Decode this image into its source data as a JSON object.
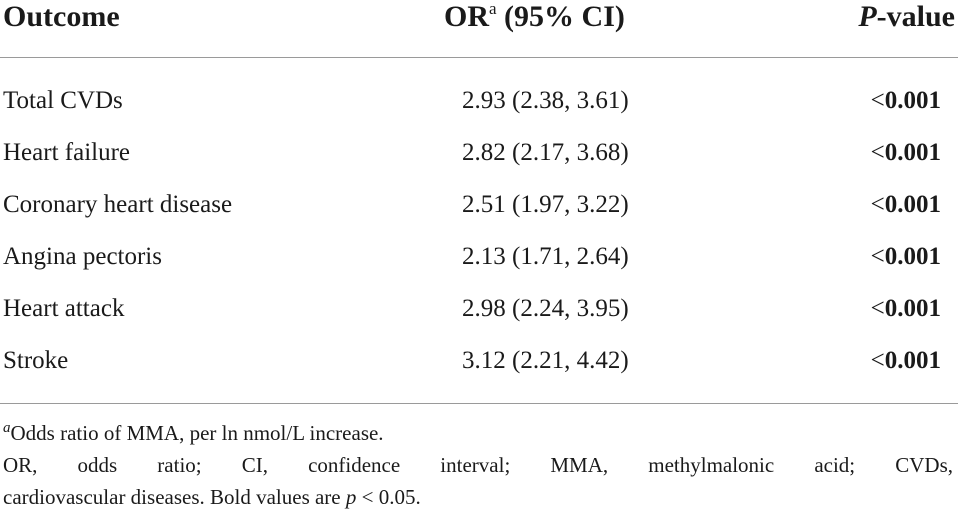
{
  "table": {
    "headers": {
      "outcome": "Outcome",
      "or_main": "OR",
      "or_sup": "a",
      "or_rest": " (95% CI)",
      "p_italic": "P",
      "p_rest": "-value"
    },
    "rows": [
      {
        "outcome": "Total CVDs",
        "or": "2.93 (2.38, 3.61)",
        "p_prefix": "<",
        "p_value": "0.001"
      },
      {
        "outcome": "Heart failure",
        "or": "2.82 (2.17, 3.68)",
        "p_prefix": "<",
        "p_value": "0.001"
      },
      {
        "outcome": "Coronary heart disease",
        "or": "2.51 (1.97, 3.22)",
        "p_prefix": "<",
        "p_value": "0.001"
      },
      {
        "outcome": "Angina pectoris",
        "or": "2.13 (1.71, 2.64)",
        "p_prefix": "<",
        "p_value": "0.001"
      },
      {
        "outcome": "Heart attack",
        "or": "2.98 (2.24, 3.95)",
        "p_prefix": "<",
        "p_value": "0.001"
      },
      {
        "outcome": "Stroke",
        "or": "3.12 (2.21, 4.42)",
        "p_prefix": "<",
        "p_value": "0.001"
      }
    ]
  },
  "footnotes": {
    "fn1_marker": "a",
    "fn1_text": "Odds ratio of MMA, per ln nmol/L increase.",
    "fn2_line1": "OR, odds ratio; CI, confidence interval; MMA, methylmalonic acid; CVDs,",
    "fn2_line2_a": "cardiovascular diseases. Bold values are ",
    "fn2_line2_p": "p",
    "fn2_line2_b": " < 0.05."
  }
}
